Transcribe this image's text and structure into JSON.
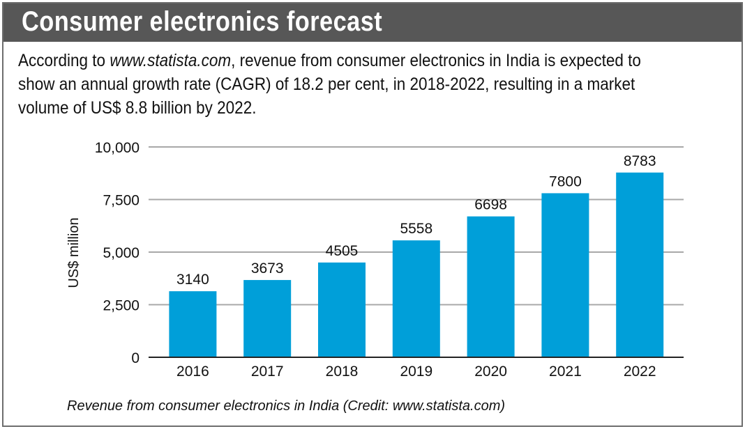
{
  "header": {
    "title": "Consumer electronics forecast"
  },
  "intro": {
    "before": "According to ",
    "link": "www.statista.com",
    "after": ", revenue from consumer electronics in India is expected to show an annual growth rate (CAGR) of 18.2 per cent, in 2018-2022, resulting in a market volume of US$ 8.8 billion by 2022."
  },
  "caption": "Revenue from consumer electronics in India (Credit: www.statista.com)",
  "colors": {
    "bar": "#009fd9",
    "header": "#575757",
    "grid": "#a8a8a8"
  },
  "chart_data": {
    "type": "bar",
    "categories": [
      "2016",
      "2017",
      "2018",
      "2019",
      "2020",
      "2021",
      "2022"
    ],
    "values": [
      3140,
      3673,
      4505,
      5558,
      6698,
      7800,
      8783
    ],
    "data_labels": [
      "3140",
      "3673",
      "4505",
      "5558",
      "6698",
      "7800",
      "8783"
    ],
    "ylabel": "US$ million",
    "xlabel": "",
    "ylim": [
      0,
      10000
    ],
    "yticks": [
      0,
      2500,
      5000,
      7500,
      10000
    ],
    "ytick_labels": [
      "0",
      "2,500",
      "5,000",
      "7,500",
      "10,000"
    ],
    "grid": true,
    "legend": "none"
  }
}
